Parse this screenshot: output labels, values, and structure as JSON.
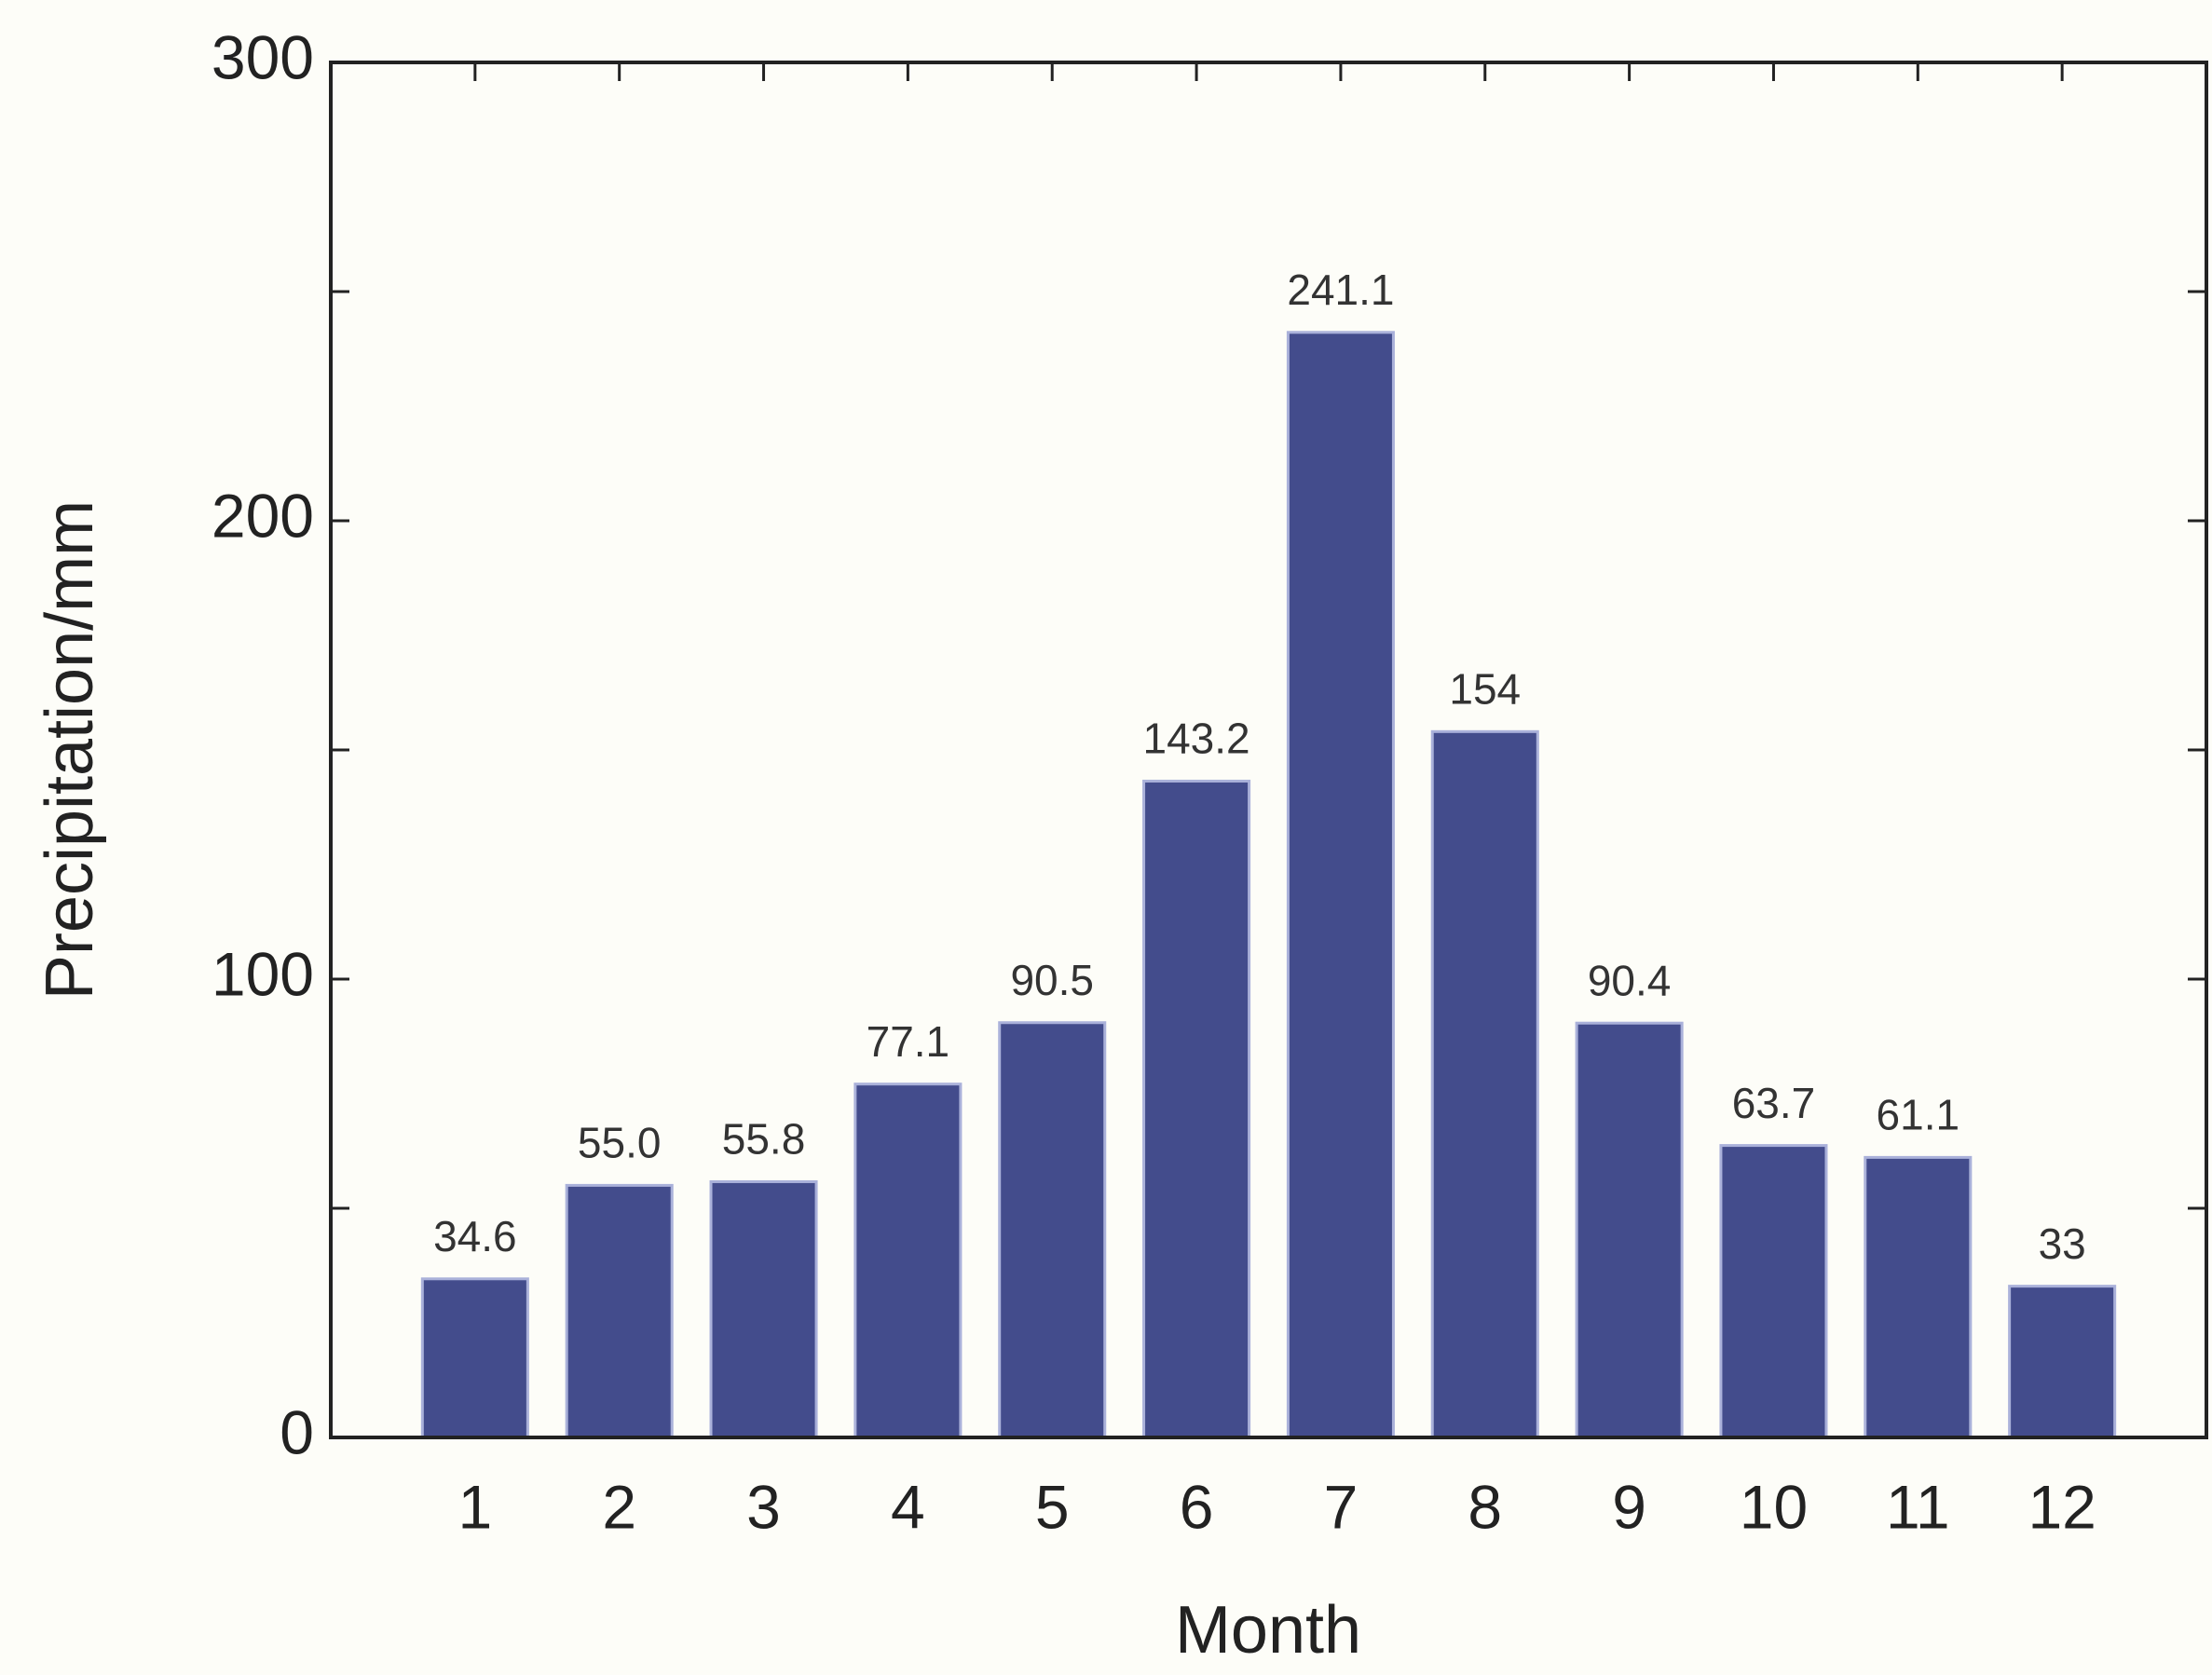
{
  "chart_data": {
    "type": "bar",
    "x_label": "Month",
    "y_label": "Precipitation/mm",
    "categories": [
      "1",
      "2",
      "3",
      "4",
      "5",
      "6",
      "7",
      "8",
      "9",
      "10",
      "11",
      "12"
    ],
    "values": [
      34.6,
      55.0,
      55.8,
      77.1,
      90.5,
      143.2,
      241.1,
      154,
      90.4,
      63.7,
      61.1,
      33
    ],
    "value_labels": [
      "34.6",
      "55.0",
      "55.8",
      "77.1",
      "90.5",
      "143.2",
      "241.1",
      "154",
      "90.4",
      "63.7",
      "61.1",
      "33"
    ],
    "color": "#434c8c",
    "edge_color": "#aab1da",
    "ylim": [
      0,
      300
    ],
    "yticks": [
      0,
      100,
      200,
      300
    ],
    "yminor_ticks": [
      50,
      150,
      250
    ],
    "grid": false
  }
}
